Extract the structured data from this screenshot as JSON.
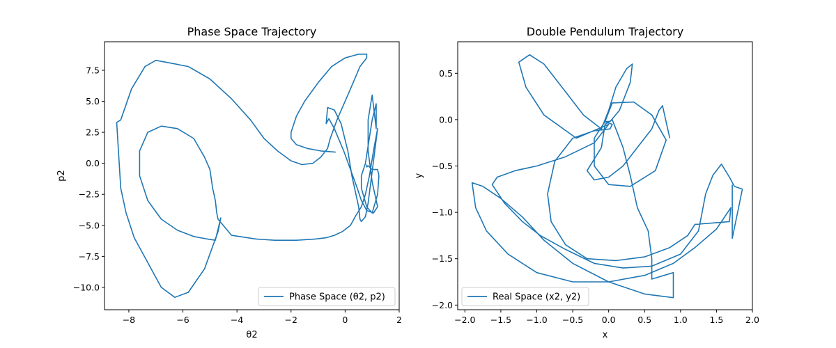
{
  "chart_data": [
    {
      "type": "line",
      "title": "Phase Space Trajectory",
      "xlabel": "θ2",
      "ylabel": "p2",
      "xlim": [
        -8.9,
        2.0
      ],
      "ylim": [
        -11.8,
        9.8
      ],
      "xticks": [
        -8,
        -6,
        -4,
        -2,
        0,
        2
      ],
      "xtick_labels": [
        "−8",
        "−6",
        "−4",
        "−2",
        "0",
        "2"
      ],
      "yticks": [
        -10.0,
        -7.5,
        -5.0,
        -2.5,
        0.0,
        2.5,
        5.0,
        7.5
      ],
      "ytick_labels": [
        "−10.0",
        "−7.5",
        "−5.0",
        "−2.5",
        "0.0",
        "2.5",
        "5.0",
        "7.5"
      ],
      "legend": "lower right",
      "series": [
        {
          "name": "Phase Space (θ2, p2)",
          "color": "#1f77b4",
          "x": [
            0.8,
            0.8,
            0.85,
            1.0,
            1.2,
            1.25,
            1.2,
            1.0,
            0.8,
            0.6,
            0.6,
            0.75,
            1.0,
            1.15,
            1.15,
            1.0,
            0.85,
            0.85,
            1.0,
            1.2,
            1.05,
            0.8,
            0.6,
            0.45,
            0.2,
            -0.05,
            -0.4,
            -0.6,
            -0.7,
            -0.65,
            -0.4,
            -0.15,
            0.1,
            0.25,
            0.4,
            0.5,
            0.55,
            0.6,
            0.75,
            0.85,
            0.95,
            1.2,
            1.05,
            0.9,
            0.75,
            0.6,
            0.4,
            0.2,
            -0.1,
            -0.4,
            -0.7,
            -1.1,
            -1.8,
            -2.6,
            -3.3,
            -4.2,
            -4.7,
            -4.75,
            -4.8,
            -4.9,
            -5.0,
            -5.2,
            -5.6,
            -6.2,
            -6.8,
            -7.3,
            -7.6,
            -7.6,
            -7.3,
            -6.8,
            -6.2,
            -5.6,
            -5.1,
            -4.8,
            -4.6,
            -4.7,
            -5.2,
            -5.8,
            -6.3,
            -6.8,
            -7.3,
            -7.8,
            -8.1,
            -8.3,
            -8.45,
            -8.3,
            -7.9,
            -7.4,
            -7.0,
            -6.5,
            -5.8,
            -5.0,
            -4.2,
            -3.5,
            -3.0,
            -2.5,
            -2.0,
            -1.6,
            -1.2,
            -0.9,
            -0.65,
            -0.55,
            -0.3,
            0.2,
            0.55,
            0.8,
            0.8,
            0.5,
            0.0,
            -0.5,
            -1.0,
            -1.5,
            -1.8,
            -2.0,
            -2.0,
            -1.8,
            -1.4,
            -0.9,
            -0.35
          ],
          "y": [
            -0.1,
            -0.3,
            -0.2,
            -0.5,
            -0.5,
            -1.0,
            -2.5,
            -4.0,
            -3.5,
            -2.0,
            -1.0,
            0.0,
            3.5,
            4.8,
            2.8,
            5.5,
            3.5,
            1.0,
            -1.5,
            -3.5,
            -4.0,
            -3.8,
            -3.0,
            -2.0,
            -0.5,
            1.0,
            2.8,
            3.6,
            3.2,
            4.5,
            4.3,
            3.2,
            1.0,
            -1.0,
            -2.5,
            -3.5,
            -4.5,
            -4.7,
            -4.3,
            -3.2,
            -1.5,
            2.8,
            1.0,
            -1.0,
            -2.5,
            -3.5,
            -4.2,
            -5.0,
            -5.5,
            -5.8,
            -6.0,
            -6.1,
            -6.2,
            -6.2,
            -6.1,
            -5.8,
            -4.5,
            -4.0,
            -3.0,
            -2.0,
            -0.5,
            0.5,
            2.0,
            2.8,
            3.0,
            2.5,
            1.0,
            -1.0,
            -3.0,
            -4.5,
            -5.4,
            -5.9,
            -6.1,
            -6.2,
            -4.4,
            -5.5,
            -8.5,
            -10.4,
            -10.8,
            -10.0,
            -8.0,
            -6.0,
            -4.0,
            -2.0,
            3.3,
            3.5,
            6.0,
            7.8,
            8.3,
            8.1,
            7.8,
            6.8,
            5.2,
            3.5,
            2.0,
            1.0,
            0.2,
            -0.1,
            0.0,
            0.5,
            1.2,
            2.0,
            3.5,
            6.0,
            7.8,
            8.5,
            8.8,
            8.8,
            8.5,
            7.8,
            6.5,
            5.0,
            3.8,
            2.5,
            2.0,
            1.5,
            1.2,
            1.0,
            0.9
          ]
        }
      ]
    },
    {
      "type": "line",
      "title": "Double Pendulum Trajectory",
      "xlabel": "x",
      "ylabel": "y",
      "xlim": [
        -2.1,
        2.0
      ],
      "ylim": [
        -2.05,
        0.84
      ],
      "xticks": [
        -2.0,
        -1.5,
        -1.0,
        -0.5,
        0.0,
        0.5,
        1.0,
        1.5,
        2.0
      ],
      "xtick_labels": [
        "−2.0",
        "−1.5",
        "−1.0",
        "−0.5",
        "0.0",
        "0.5",
        "1.0",
        "1.5",
        "2.0"
      ],
      "yticks": [
        -2.0,
        -1.5,
        -1.0,
        -0.5,
        0.0,
        0.5
      ],
      "ytick_labels": [
        "−2.0",
        "−1.5",
        "−1.0",
        "−0.5",
        "0.0",
        "0.5"
      ],
      "legend": "lower left",
      "series": [
        {
          "name": "Real Space (x2, y2)",
          "color": "#1f77b4",
          "x": [
            1.72,
            1.72,
            1.86,
            1.75,
            1.68,
            1.57,
            1.45,
            1.35,
            1.3,
            1.25,
            1.0,
            0.6,
            0.2,
            -0.2,
            -0.6,
            -0.95,
            -1.2,
            -1.45,
            -1.62,
            -1.55,
            -1.3,
            -1.0,
            -0.6,
            -0.2,
            0.0,
            -0.45,
            -0.9,
            -1.15,
            -1.25,
            -1.1,
            -0.9,
            -0.6,
            -0.35,
            -0.1,
            0.0,
            0.1,
            0.25,
            0.33,
            0.3,
            0.15,
            0.02,
            -0.05,
            0.05,
            0.35,
            0.6,
            0.8,
            0.65,
            0.3,
            0.0,
            -0.2,
            -0.2,
            -0.05,
            0.05,
            0.02,
            -0.2,
            -0.5,
            -0.75,
            -0.85,
            -0.8,
            -0.6,
            -0.3,
            0.1,
            0.5,
            0.85,
            1.1,
            1.2,
            1.68,
            1.7,
            1.5,
            1.2,
            0.9,
            0.5,
            0.0,
            -0.5,
            -1.0,
            -1.4,
            -1.7,
            -1.85,
            -1.9,
            -1.75,
            -1.5,
            -1.2,
            -0.9,
            -0.5,
            0.0,
            0.5,
            0.9,
            0.9,
            0.6,
            0.6,
            0.55,
            0.4,
            0.3,
            0.2,
            0.1,
            0.05,
            -0.05,
            -0.1,
            -0.3,
            -0.2,
            0.0,
            0.2,
            0.4,
            0.6,
            0.7,
            0.75,
            0.85
          ],
          "y": [
            -0.7,
            -1.28,
            -0.75,
            -0.72,
            -0.62,
            -0.48,
            -0.6,
            -0.8,
            -1.0,
            -1.2,
            -1.45,
            -1.58,
            -1.6,
            -1.55,
            -1.4,
            -1.25,
            -1.1,
            -0.9,
            -0.7,
            -0.62,
            -0.55,
            -0.5,
            -0.4,
            -0.25,
            -0.05,
            -0.2,
            0.05,
            0.35,
            0.62,
            0.7,
            0.6,
            0.3,
            0.05,
            -0.1,
            0.1,
            0.35,
            0.55,
            0.6,
            0.4,
            0.1,
            -0.02,
            -0.02,
            0.18,
            0.19,
            0.05,
            -0.22,
            -0.55,
            -0.72,
            -0.7,
            -0.5,
            -0.2,
            -0.02,
            -0.05,
            -0.1,
            -0.12,
            -0.2,
            -0.45,
            -0.8,
            -1.1,
            -1.35,
            -1.5,
            -1.52,
            -1.48,
            -1.38,
            -1.25,
            -1.13,
            -1.1,
            -0.95,
            -1.18,
            -1.38,
            -1.55,
            -1.68,
            -1.75,
            -1.75,
            -1.65,
            -1.45,
            -1.2,
            -0.95,
            -0.68,
            -0.72,
            -0.85,
            -1.05,
            -1.3,
            -1.55,
            -1.75,
            -1.88,
            -1.92,
            -1.65,
            -1.72,
            -1.5,
            -1.2,
            -0.95,
            -0.6,
            -0.3,
            -0.1,
            0.0,
            -0.05,
            -0.3,
            -0.55,
            -0.65,
            -0.62,
            -0.5,
            -0.3,
            -0.1,
            0.1,
            0.15,
            -0.2
          ]
        }
      ]
    }
  ]
}
